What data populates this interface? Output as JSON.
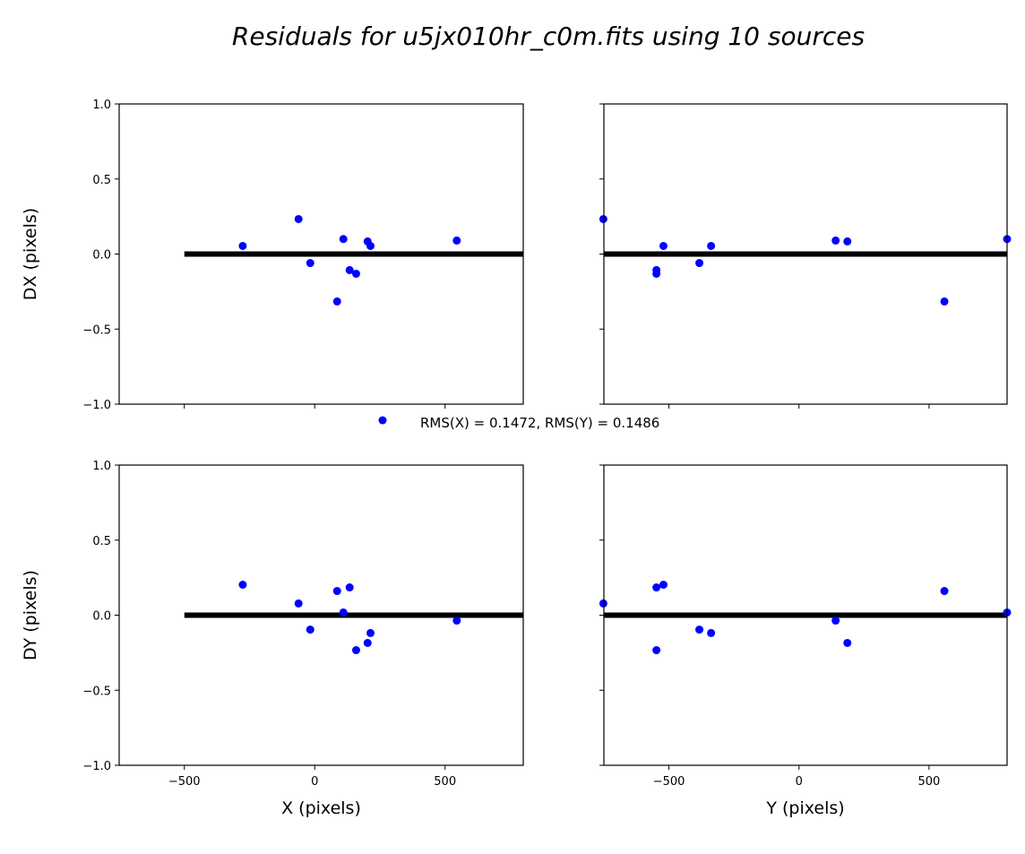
{
  "chart_data": [
    {
      "type": "scatter",
      "title": "Residuals for u5jx010hr_c0m.fits using 10 sources",
      "legend": {
        "label": "RMS(X) = 0.1472, RMS(Y) = 0.1486",
        "placement": "center"
      },
      "colors": {
        "points": "#0000ff",
        "zero_line": "#000000"
      },
      "panels": [
        {
          "id": "x-dx",
          "xkey": "x",
          "ykey": "dx",
          "xlabel": "",
          "ylabel": "DX (pixels)",
          "xlim": [
            -750,
            800
          ],
          "ylim": [
            -1,
            1
          ],
          "show_xticklabels": false,
          "show_yticklabels": true,
          "zero_line_x": [
            -500,
            800
          ]
        },
        {
          "id": "y-dx",
          "xkey": "y",
          "ykey": "dx",
          "xlabel": "",
          "ylabel": "",
          "xlim": [
            -750,
            800
          ],
          "ylim": [
            -1,
            1
          ],
          "show_xticklabels": false,
          "show_yticklabels": false,
          "zero_line_x": [
            -750,
            800
          ]
        },
        {
          "id": "x-dy",
          "xkey": "x",
          "ykey": "dy",
          "xlabel": "X (pixels)",
          "ylabel": "DY (pixels)",
          "xlim": [
            -750,
            800
          ],
          "ylim": [
            -1,
            1
          ],
          "show_xticklabels": true,
          "show_yticklabels": true,
          "zero_line_x": [
            -500,
            800
          ]
        },
        {
          "id": "y-dy",
          "xkey": "y",
          "ykey": "dy",
          "xlabel": "Y (pixels)",
          "ylabel": "",
          "xlim": [
            -750,
            800
          ],
          "ylim": [
            -1,
            1
          ],
          "show_xticklabels": true,
          "show_yticklabels": false,
          "zero_line_x": [
            -750,
            800
          ]
        }
      ],
      "xticks": [
        -500,
        0,
        500
      ],
      "xtick_labels": [
        "−500",
        "0",
        "500"
      ],
      "yticks": [
        1.0,
        0.5,
        0.0,
        -0.5,
        -1.0
      ],
      "ytick_labels": [
        "1.0",
        "0.5",
        "0.0",
        "−0.5",
        "−1.0"
      ],
      "sources": [
        {
          "x": -276,
          "y": -521,
          "dx": 0.054,
          "dy": 0.203
        },
        {
          "x": -62,
          "y": -752,
          "dx": 0.233,
          "dy": 0.078
        },
        {
          "x": -17,
          "y": -383,
          "dx": -0.06,
          "dy": -0.096
        },
        {
          "x": 86,
          "y": 559,
          "dx": -0.316,
          "dy": 0.161
        },
        {
          "x": 110,
          "y": 800,
          "dx": 0.1,
          "dy": 0.018
        },
        {
          "x": 134,
          "y": -548,
          "dx": -0.107,
          "dy": 0.185
        },
        {
          "x": 159,
          "y": -548,
          "dx": -0.131,
          "dy": -0.233
        },
        {
          "x": 203,
          "y": 186,
          "dx": 0.084,
          "dy": -0.185
        },
        {
          "x": 214,
          "y": -338,
          "dx": 0.054,
          "dy": -0.119
        },
        {
          "x": 545,
          "y": 141,
          "dx": 0.09,
          "dy": -0.036
        }
      ]
    }
  ]
}
